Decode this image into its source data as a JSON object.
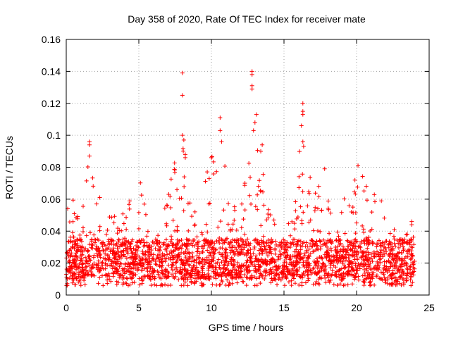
{
  "chart_data": {
    "type": "scatter",
    "title": "Day 358 of 2020, Rate Of TEC Index for receiver mate",
    "xlabel": "GPS time / hours",
    "ylabel": "ROTI / TECUs",
    "xlim": [
      0,
      25
    ],
    "ylim": [
      0,
      0.16
    ],
    "xticks": [
      0,
      5,
      10,
      15,
      20,
      25
    ],
    "xtick_labels": [
      "0",
      "5",
      "10",
      "15",
      "20",
      "25"
    ],
    "yticks": [
      0,
      0.02,
      0.04,
      0.06,
      0.08,
      0.1,
      0.12,
      0.14,
      0.16
    ],
    "ytick_labels": [
      "0",
      "0.02",
      "0.04",
      "0.06",
      "0.08",
      "0.1",
      "0.12",
      "0.14",
      "0.16"
    ],
    "grid": true,
    "marker": "+",
    "marker_color": "#ff0000",
    "x_data_range": [
      0,
      24
    ],
    "baseline_band": [
      0.01,
      0.035
    ],
    "envelope": [
      {
        "x": 0.0,
        "y": 0.045
      },
      {
        "x": 0.5,
        "y": 0.068
      },
      {
        "x": 1.0,
        "y": 0.05
      },
      {
        "x": 1.6,
        "y": 0.09
      },
      {
        "x": 2.2,
        "y": 0.06
      },
      {
        "x": 2.8,
        "y": 0.07
      },
      {
        "x": 3.3,
        "y": 0.05
      },
      {
        "x": 3.8,
        "y": 0.065
      },
      {
        "x": 4.5,
        "y": 0.06
      },
      {
        "x": 5.2,
        "y": 0.077
      },
      {
        "x": 5.8,
        "y": 0.03
      },
      {
        "x": 6.5,
        "y": 0.045
      },
      {
        "x": 7.3,
        "y": 0.08
      },
      {
        "x": 8.0,
        "y": 0.095
      },
      {
        "x": 8.6,
        "y": 0.07
      },
      {
        "x": 9.3,
        "y": 0.066
      },
      {
        "x": 10.0,
        "y": 0.085
      },
      {
        "x": 10.5,
        "y": 0.11
      },
      {
        "x": 11.3,
        "y": 0.06
      },
      {
        "x": 12.0,
        "y": 0.065
      },
      {
        "x": 12.8,
        "y": 0.13
      },
      {
        "x": 13.2,
        "y": 0.11
      },
      {
        "x": 13.7,
        "y": 0.07
      },
      {
        "x": 14.5,
        "y": 0.05
      },
      {
        "x": 15.5,
        "y": 0.045
      },
      {
        "x": 16.3,
        "y": 0.115
      },
      {
        "x": 17.0,
        "y": 0.07
      },
      {
        "x": 17.8,
        "y": 0.07
      },
      {
        "x": 18.5,
        "y": 0.05
      },
      {
        "x": 19.5,
        "y": 0.07
      },
      {
        "x": 20.2,
        "y": 0.08
      },
      {
        "x": 21.0,
        "y": 0.065
      },
      {
        "x": 21.6,
        "y": 0.065
      },
      {
        "x": 22.3,
        "y": 0.04
      },
      {
        "x": 23.0,
        "y": 0.035
      },
      {
        "x": 24.0,
        "y": 0.045
      }
    ],
    "outliers": [
      {
        "x": 8.0,
        "y": 0.139
      },
      {
        "x": 8.0,
        "y": 0.125
      },
      {
        "x": 8.0,
        "y": 0.1
      },
      {
        "x": 8.1,
        "y": 0.097
      },
      {
        "x": 12.8,
        "y": 0.14
      },
      {
        "x": 12.8,
        "y": 0.138
      },
      {
        "x": 12.8,
        "y": 0.131
      },
      {
        "x": 12.8,
        "y": 0.129
      },
      {
        "x": 13.1,
        "y": 0.113
      },
      {
        "x": 13.0,
        "y": 0.108
      },
      {
        "x": 12.9,
        "y": 0.103
      },
      {
        "x": 16.3,
        "y": 0.12
      },
      {
        "x": 16.3,
        "y": 0.115
      },
      {
        "x": 16.3,
        "y": 0.113
      },
      {
        "x": 16.2,
        "y": 0.106
      },
      {
        "x": 16.3,
        "y": 0.096
      },
      {
        "x": 10.6,
        "y": 0.111
      },
      {
        "x": 10.6,
        "y": 0.103
      },
      {
        "x": 10.7,
        "y": 0.096
      },
      {
        "x": 1.6,
        "y": 0.096
      },
      {
        "x": 1.6,
        "y": 0.094
      },
      {
        "x": 1.6,
        "y": 0.087
      },
      {
        "x": 10.0,
        "y": 0.086
      },
      {
        "x": 20.1,
        "y": 0.081
      },
      {
        "x": 13.5,
        "y": 0.094
      },
      {
        "x": 13.4,
        "y": 0.09
      },
      {
        "x": 8.2,
        "y": 0.088
      },
      {
        "x": 8.2,
        "y": 0.086
      },
      {
        "x": 17.8,
        "y": 0.079
      },
      {
        "x": 23.8,
        "y": 0.046
      },
      {
        "x": 23.8,
        "y": 0.044
      },
      {
        "x": 22.6,
        "y": 0.041
      },
      {
        "x": 0.1,
        "y": 0.054
      }
    ]
  }
}
